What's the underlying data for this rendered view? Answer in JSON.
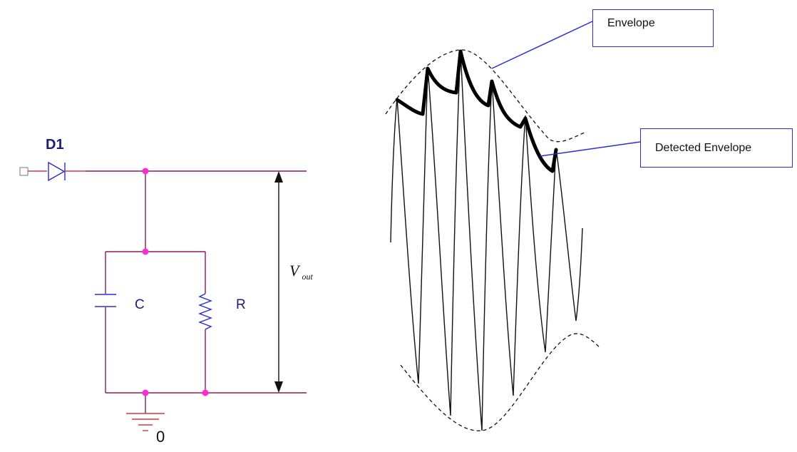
{
  "circuit": {
    "diode_label": "D1",
    "capacitor_label": "C",
    "resistor_label": "R",
    "ground_label": "0",
    "output_label_main": "V",
    "output_label_sub": "out"
  },
  "waveform": {
    "envelope_label": "Envelope",
    "detected_envelope_label": "Detected Envelope"
  },
  "colors": {
    "wire": "#8a1a5a",
    "node": "#ff2bd6",
    "component": "#2b2bd6",
    "callout": "#2b2bd6",
    "signal": "#111111"
  }
}
